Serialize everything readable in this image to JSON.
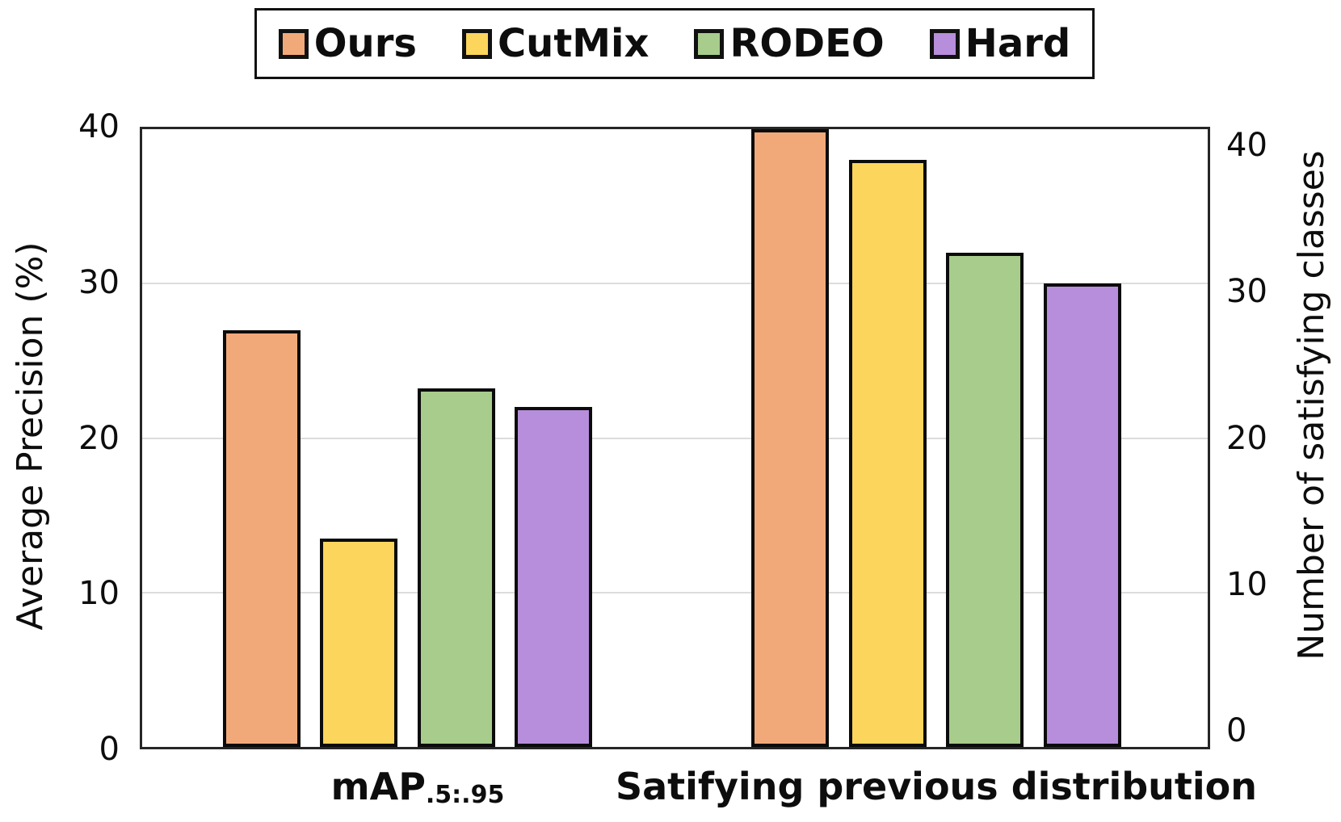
{
  "legend": {
    "items": [
      {
        "label": "Ours",
        "color": "#F2A97A"
      },
      {
        "label": "CutMix",
        "color": "#FCD55C"
      },
      {
        "label": "RODEO",
        "color": "#A8CC8C"
      },
      {
        "label": "Hard",
        "color": "#B78EDB"
      }
    ]
  },
  "chart_data": {
    "type": "bar",
    "categories": [
      "mAP.5:.95",
      "Satifying previous distribution"
    ],
    "category_labels": [
      {
        "main": "mAP",
        "sub": ".5:.95"
      },
      {
        "main": "Satifying previous distribution",
        "sub": ""
      }
    ],
    "series": [
      {
        "name": "Ours",
        "color": "#F2A97A",
        "values": [
          27,
          40
        ]
      },
      {
        "name": "CutMix",
        "color": "#FCD55C",
        "values": [
          13.5,
          38
        ]
      },
      {
        "name": "RODEO",
        "color": "#A8CC8C",
        "values": [
          23.2,
          32
        ]
      },
      {
        "name": "Hard",
        "color": "#B78EDB",
        "values": [
          22,
          30
        ]
      }
    ],
    "left_axis": {
      "label": "Average Precision (%)",
      "ticks": [
        0,
        10,
        20,
        30,
        40
      ],
      "ylim": [
        0,
        40
      ]
    },
    "right_axis": {
      "label": "Number of satisfying classes",
      "ticks": [
        0,
        10,
        20,
        30,
        40
      ],
      "ylim": [
        0,
        40
      ]
    },
    "grid": "horizontal-light",
    "legend_position": "top",
    "bar_border_color": "#0b0b0b"
  }
}
